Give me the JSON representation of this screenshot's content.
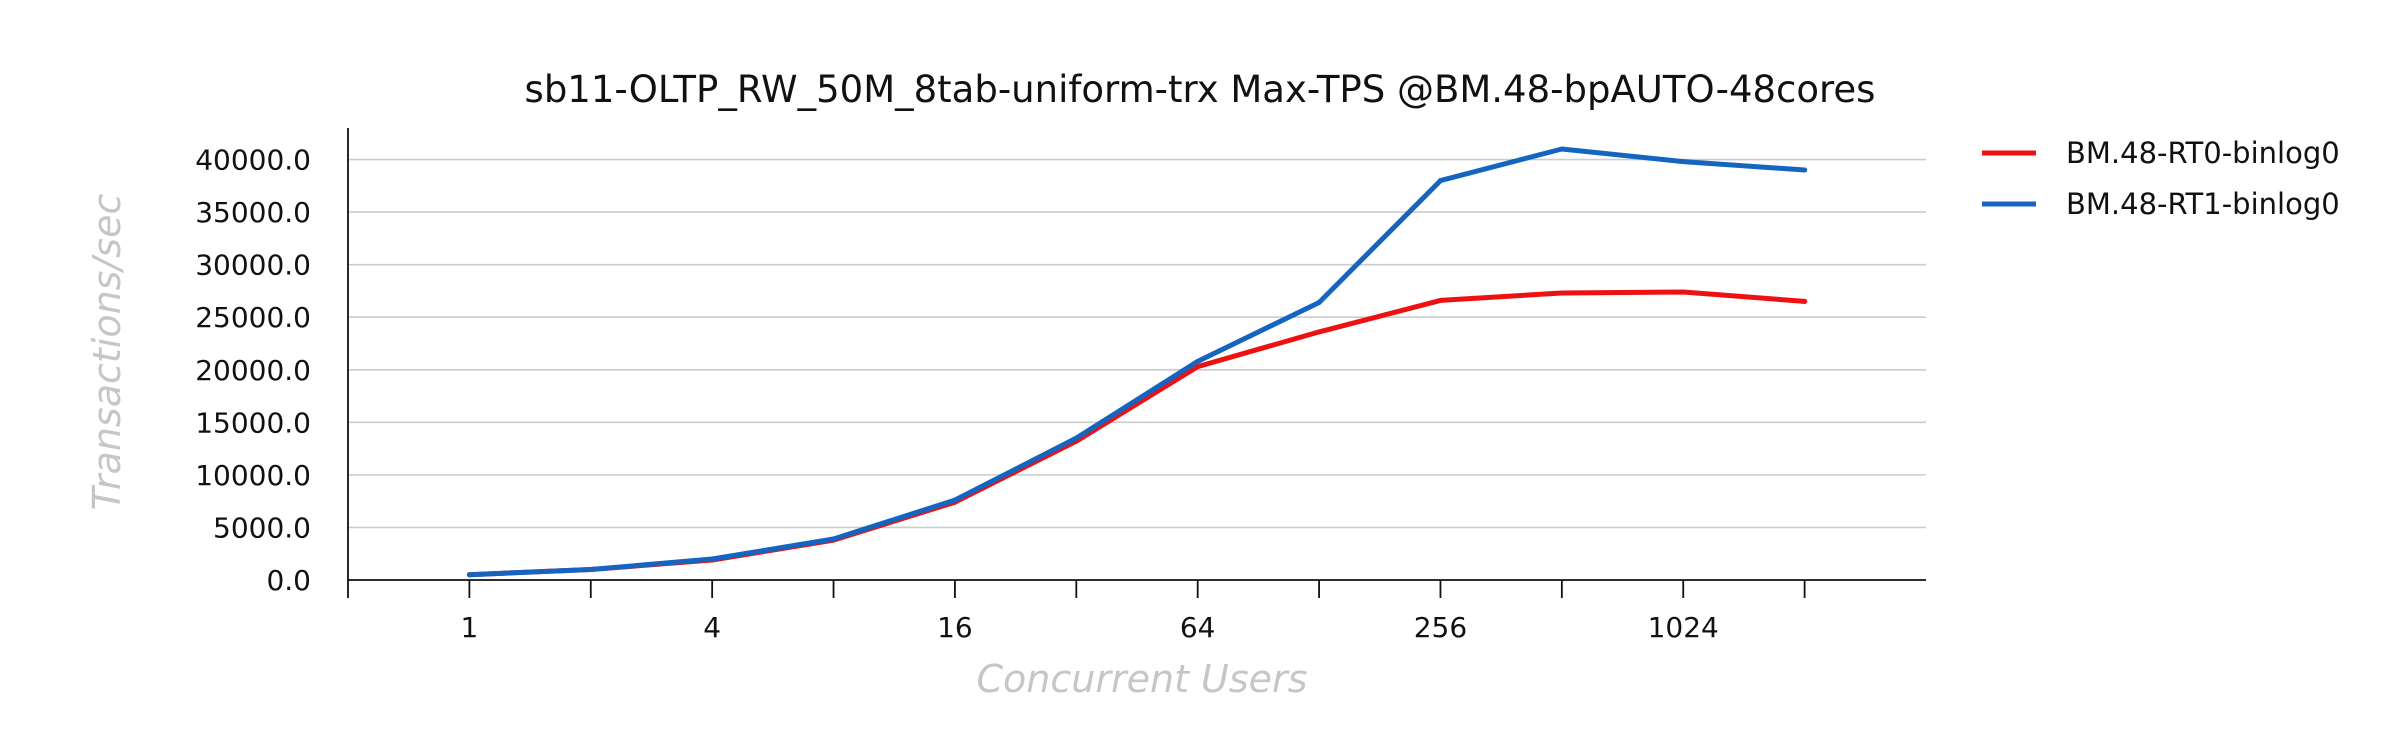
{
  "chart_data": {
    "type": "line",
    "title": "sb11-OLTP_RW_50M_8tab-uniform-trx Max-TPS @BM.48-bpAUTO-48cores",
    "xlabel": "Concurrent Users",
    "ylabel": "Transactions/sec",
    "x_scale": "log2",
    "x": [
      1,
      2,
      4,
      8,
      16,
      32,
      64,
      128,
      256,
      512,
      1024,
      2048
    ],
    "x_tick_labels": [
      "1",
      "4",
      "16",
      "64",
      "256",
      "1024"
    ],
    "x_tick_label_values": [
      1,
      4,
      16,
      64,
      256,
      1024
    ],
    "x_tick_marks": [
      0.5,
      1,
      2,
      4,
      8,
      16,
      32,
      64,
      128,
      256,
      512,
      1024,
      2048
    ],
    "y_ticks": [
      0,
      5000,
      10000,
      15000,
      20000,
      25000,
      30000,
      35000,
      40000
    ],
    "y_tick_labels": [
      "0.0",
      "5000.0",
      "10000.0",
      "15000.0",
      "20000.0",
      "25000.0",
      "30000.0",
      "35000.0",
      "40000.0"
    ],
    "ylim": [
      0,
      43000
    ],
    "grid": "horizontal",
    "legend_position": "outside-right-top",
    "series": [
      {
        "name": "BM.48-RT0-binlog0",
        "color": "#ee1111",
        "values": [
          500,
          1000,
          1900,
          3800,
          7400,
          13200,
          20300,
          23600,
          26600,
          27300,
          27400,
          26500
        ]
      },
      {
        "name": "BM.48-RT1-binlog0",
        "color": "#1565c0",
        "values": [
          500,
          1000,
          2000,
          3900,
          7600,
          13500,
          20800,
          26400,
          38000,
          41000,
          39800,
          39000
        ]
      }
    ]
  }
}
